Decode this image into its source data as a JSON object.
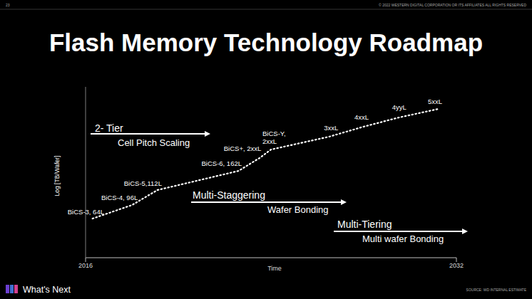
{
  "slide": {
    "page_number": "23",
    "copyright": "© 2022 WESTERN DIGITAL CORPORATION OR ITS AFFILIATES  ALL RIGHTS RESERVED",
    "footer": "What's Next",
    "source": "SOURCE: WD INTERNAL ESTIMATE"
  },
  "chart_data": {
    "type": "line",
    "title": "Flash Memory Technology Roadmap",
    "x_label": "Time",
    "y_label": "Log [TB/Wafer]",
    "x": [
      2016.3,
      2018,
      2019.1,
      2022.6,
      2023.5,
      2024,
      2026.5,
      2028,
      2029.5,
      2031.2
    ],
    "values": [
      22.9,
      30.8,
      39.6,
      50.8,
      58.3,
      63.3,
      70.8,
      76.7,
      82,
      87
    ],
    "labels": [
      "BiCS-3, 64L",
      "BiCS-4, 96L",
      "BiCS-5,112L",
      "BiCS-6, 162L",
      "BiCS+, 2xxL",
      "BiCS-Y, 2xxL",
      "3xxL",
      "4xxL",
      "4yyL",
      "5xxL"
    ],
    "xlim": [
      2016,
      2032
    ],
    "xticks": [
      2016,
      2032
    ],
    "ylim": [
      0,
      100
    ],
    "yticks": [],
    "tick_labels": "x",
    "grid": false,
    "color": "#ffffff",
    "line_style": "dotted",
    "annotations": [
      {
        "text": "2- Tier",
        "subtext": "Cell Pitch Scaling"
      },
      {
        "text": "Multi-Staggering",
        "subtext": "Wafer Bonding"
      },
      {
        "text": "Multi-Tiering",
        "subtext": "Multi wafer Bonding"
      }
    ]
  }
}
